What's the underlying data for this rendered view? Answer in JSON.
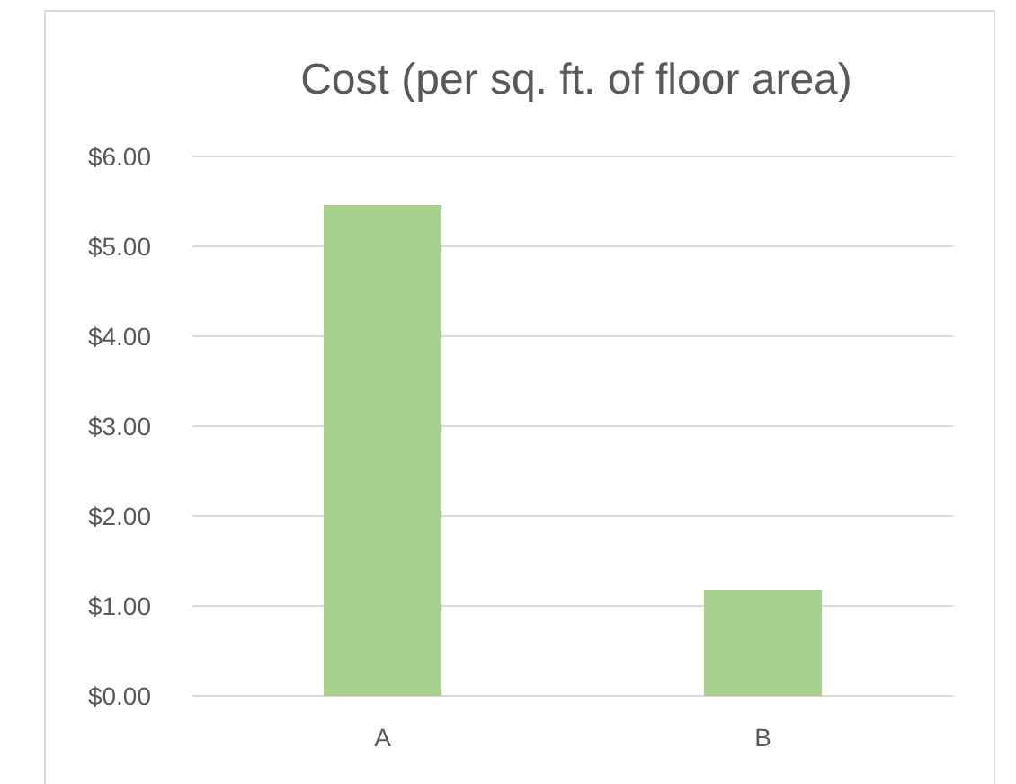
{
  "chart_data": {
    "type": "bar",
    "title": "Cost (per sq. ft. of floor area)",
    "categories": [
      "A",
      "B"
    ],
    "values": [
      5.46,
      1.18
    ],
    "color": "#a9d18e",
    "ylim": [
      0,
      6
    ],
    "yticks": [
      {
        "value": 0,
        "label": "$0.00"
      },
      {
        "value": 1,
        "label": "$1.00"
      },
      {
        "value": 2,
        "label": "$2.00"
      },
      {
        "value": 3,
        "label": "$3.00"
      },
      {
        "value": 4,
        "label": "$4.00"
      },
      {
        "value": 5,
        "label": "$5.00"
      },
      {
        "value": 6,
        "label": "$6.00"
      }
    ],
    "grid": "y"
  }
}
